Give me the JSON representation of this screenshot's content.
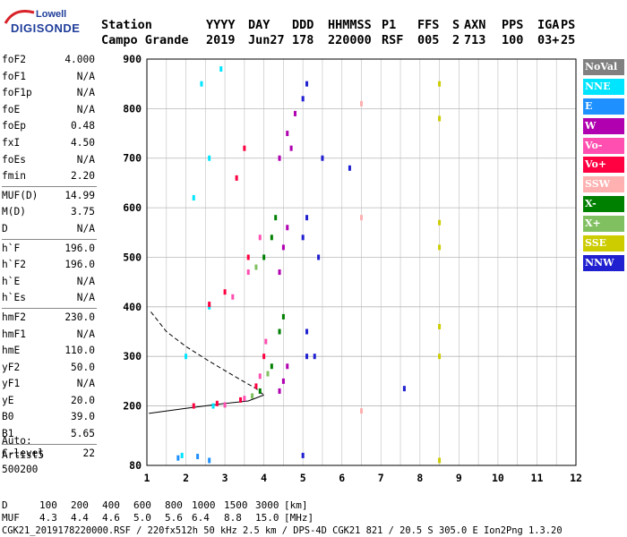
{
  "logo": {
    "line1": "Lowell",
    "line2": "DIGISONDE"
  },
  "header": {
    "labels": [
      "Station",
      "YYYY",
      "DAY",
      "DDD",
      "HHMMSS",
      "P1",
      "FFS",
      "S",
      "AXN",
      "PPS",
      "IGA",
      "PS"
    ],
    "values": [
      "Campo Grande",
      "2019",
      "Jun27",
      "178",
      "220000",
      "RSF",
      "005",
      "2",
      "713",
      "100",
      "03+",
      "25"
    ]
  },
  "params": {
    "group1": [
      {
        "label": "foF2",
        "value": "4.000"
      },
      {
        "label": "foF1",
        "value": "N/A"
      },
      {
        "label": "foF1p",
        "value": "N/A"
      },
      {
        "label": "foE",
        "value": "N/A"
      },
      {
        "label": "foEp",
        "value": "0.48"
      },
      {
        "label": "fxI",
        "value": "4.50"
      },
      {
        "label": "foEs",
        "value": "N/A"
      },
      {
        "label": "fmin",
        "value": "2.20"
      }
    ],
    "group2": [
      {
        "label": "MUF(D)",
        "value": "14.99"
      },
      {
        "label": "M(D)",
        "value": "3.75"
      },
      {
        "label": "D",
        "value": "N/A"
      }
    ],
    "group3": [
      {
        "label": "h`F",
        "value": "196.0"
      },
      {
        "label": "h`F2",
        "value": "196.0"
      },
      {
        "label": "h`E",
        "value": "N/A"
      },
      {
        "label": "h`Es",
        "value": "N/A"
      }
    ],
    "group4": [
      {
        "label": "hmF2",
        "value": "230.0"
      },
      {
        "label": "hmF1",
        "value": "N/A"
      },
      {
        "label": "hmE",
        "value": "110.0"
      },
      {
        "label": "yF2",
        "value": "50.0"
      },
      {
        "label": "yF1",
        "value": "N/A"
      },
      {
        "label": "yE",
        "value": "20.0"
      },
      {
        "label": "B0",
        "value": "39.0"
      },
      {
        "label": "B1",
        "value": "5.65"
      }
    ],
    "group5": [
      {
        "label": "C-level",
        "value": "22"
      }
    ]
  },
  "auto": {
    "line1": "Auto:",
    "line2": "Artist5",
    "line3": "500200"
  },
  "legend": [
    {
      "label": "NoVal",
      "bg": "#808080",
      "fg": "#ffffff"
    },
    {
      "label": "NNE",
      "bg": "#00e5ff",
      "fg": "#ffffff"
    },
    {
      "label": "E",
      "bg": "#1e90ff",
      "fg": "#ffffff"
    },
    {
      "label": "W",
      "bg": "#b000b0",
      "fg": "#ffffff"
    },
    {
      "label": "Vo-",
      "bg": "#ff4fb0",
      "fg": "#ffffff"
    },
    {
      "label": "Vo+",
      "bg": "#ff0040",
      "fg": "#ffffff"
    },
    {
      "label": "SSW",
      "bg": "#ffb0b0",
      "fg": "#ffffff"
    },
    {
      "label": "X-",
      "bg": "#008000",
      "fg": "#ffffff"
    },
    {
      "label": "X+",
      "bg": "#80c060",
      "fg": "#ffffff"
    },
    {
      "label": "SSE",
      "bg": "#cccc00",
      "fg": "#ffffff"
    },
    {
      "label": "NNW",
      "bg": "#2020d0",
      "fg": "#ffffff"
    }
  ],
  "footer": {
    "d_label": "D",
    "d_values": [
      "100",
      "200",
      "400",
      "600",
      "800",
      "1000",
      "1500",
      "3000",
      "[km]"
    ],
    "muf_label": "MUF",
    "muf_values": [
      "4.3",
      "4.4",
      "4.6",
      "5.0",
      "5.6",
      "6.4",
      "8.8",
      "15.0",
      "[MHz]"
    ],
    "source": "CGK21_2019178220000.RSF / 220fx512h 50 kHz 2.5 km / DPS-4D CGK21 821 / 20.5 S 305.0 E Ion2Png 1.3.20"
  },
  "chart_data": {
    "type": "scatter",
    "title": "",
    "xlabel": "",
    "ylabel": "",
    "xlim": [
      1,
      12
    ],
    "ylim": [
      80,
      900
    ],
    "x_ticks": [
      1,
      2,
      3,
      4,
      5,
      6,
      7,
      8,
      9,
      10,
      11,
      12
    ],
    "y_ticks": [
      80,
      200,
      300,
      400,
      500,
      600,
      700,
      800,
      900
    ],
    "grid": true,
    "series": [
      {
        "name": "NNE",
        "color": "#00e5ff",
        "points": [
          [
            1.9,
            100
          ],
          [
            2.0,
            300
          ],
          [
            2.2,
            620
          ],
          [
            2.4,
            850
          ],
          [
            2.6,
            400
          ],
          [
            2.6,
            700
          ],
          [
            2.7,
            200
          ],
          [
            2.9,
            880
          ]
        ]
      },
      {
        "name": "E",
        "color": "#1e90ff",
        "points": [
          [
            1.8,
            95
          ],
          [
            2.3,
            98
          ],
          [
            2.6,
            90
          ]
        ]
      },
      {
        "name": "W",
        "color": "#b000b0",
        "points": [
          [
            4.4,
            230
          ],
          [
            4.5,
            250
          ],
          [
            4.6,
            280
          ],
          [
            4.4,
            470
          ],
          [
            4.5,
            520
          ],
          [
            4.6,
            560
          ],
          [
            4.4,
            700
          ],
          [
            4.6,
            750
          ],
          [
            4.8,
            790
          ],
          [
            4.7,
            720
          ]
        ]
      },
      {
        "name": "Vo-",
        "color": "#ff4fb0",
        "points": [
          [
            3.0,
            202
          ],
          [
            3.5,
            215
          ],
          [
            3.9,
            260
          ],
          [
            4.05,
            330
          ],
          [
            3.2,
            420
          ],
          [
            3.6,
            470
          ],
          [
            3.9,
            540
          ]
        ]
      },
      {
        "name": "Vo+",
        "color": "#ff0040",
        "points": [
          [
            2.2,
            200
          ],
          [
            2.8,
            205
          ],
          [
            3.4,
            212
          ],
          [
            3.8,
            240
          ],
          [
            4.0,
            300
          ],
          [
            2.6,
            405
          ],
          [
            3.0,
            430
          ],
          [
            3.6,
            500
          ],
          [
            3.3,
            660
          ],
          [
            3.5,
            720
          ]
        ]
      },
      {
        "name": "SSW",
        "color": "#ffb0b0",
        "points": [
          [
            6.5,
            190
          ],
          [
            6.5,
            580
          ],
          [
            6.5,
            810
          ]
        ]
      },
      {
        "name": "X-",
        "color": "#008000",
        "points": [
          [
            3.9,
            230
          ],
          [
            4.2,
            280
          ],
          [
            4.4,
            350
          ],
          [
            4.5,
            380
          ],
          [
            4.2,
            540
          ],
          [
            4.3,
            580
          ],
          [
            4.0,
            500
          ]
        ]
      },
      {
        "name": "X+",
        "color": "#80c060",
        "points": [
          [
            3.7,
            220
          ],
          [
            4.1,
            265
          ],
          [
            3.8,
            480
          ]
        ]
      },
      {
        "name": "SSE",
        "color": "#cccc00",
        "points": [
          [
            8.5,
            90
          ],
          [
            8.5,
            300
          ],
          [
            8.5,
            360
          ],
          [
            8.5,
            520
          ],
          [
            8.5,
            570
          ],
          [
            8.5,
            780
          ],
          [
            8.5,
            850
          ]
        ]
      },
      {
        "name": "NNW",
        "color": "#2020d0",
        "points": [
          [
            5.0,
            100
          ],
          [
            5.1,
            300
          ],
          [
            5.1,
            350
          ],
          [
            5.0,
            540
          ],
          [
            5.1,
            580
          ],
          [
            5.0,
            820
          ],
          [
            5.1,
            850
          ],
          [
            5.3,
            300
          ],
          [
            5.4,
            500
          ],
          [
            5.5,
            700
          ],
          [
            6.2,
            680
          ],
          [
            7.6,
            235
          ]
        ]
      }
    ],
    "profile_solid": [
      [
        1.05,
        185
      ],
      [
        2.0,
        195
      ],
      [
        3.0,
        205
      ],
      [
        3.6,
        210
      ],
      [
        4.0,
        222
      ]
    ],
    "profile_dashed": [
      [
        1.1,
        390
      ],
      [
        1.5,
        350
      ],
      [
        2.0,
        320
      ],
      [
        2.6,
        290
      ],
      [
        3.2,
        262
      ],
      [
        3.8,
        235
      ],
      [
        4.0,
        222
      ]
    ]
  }
}
